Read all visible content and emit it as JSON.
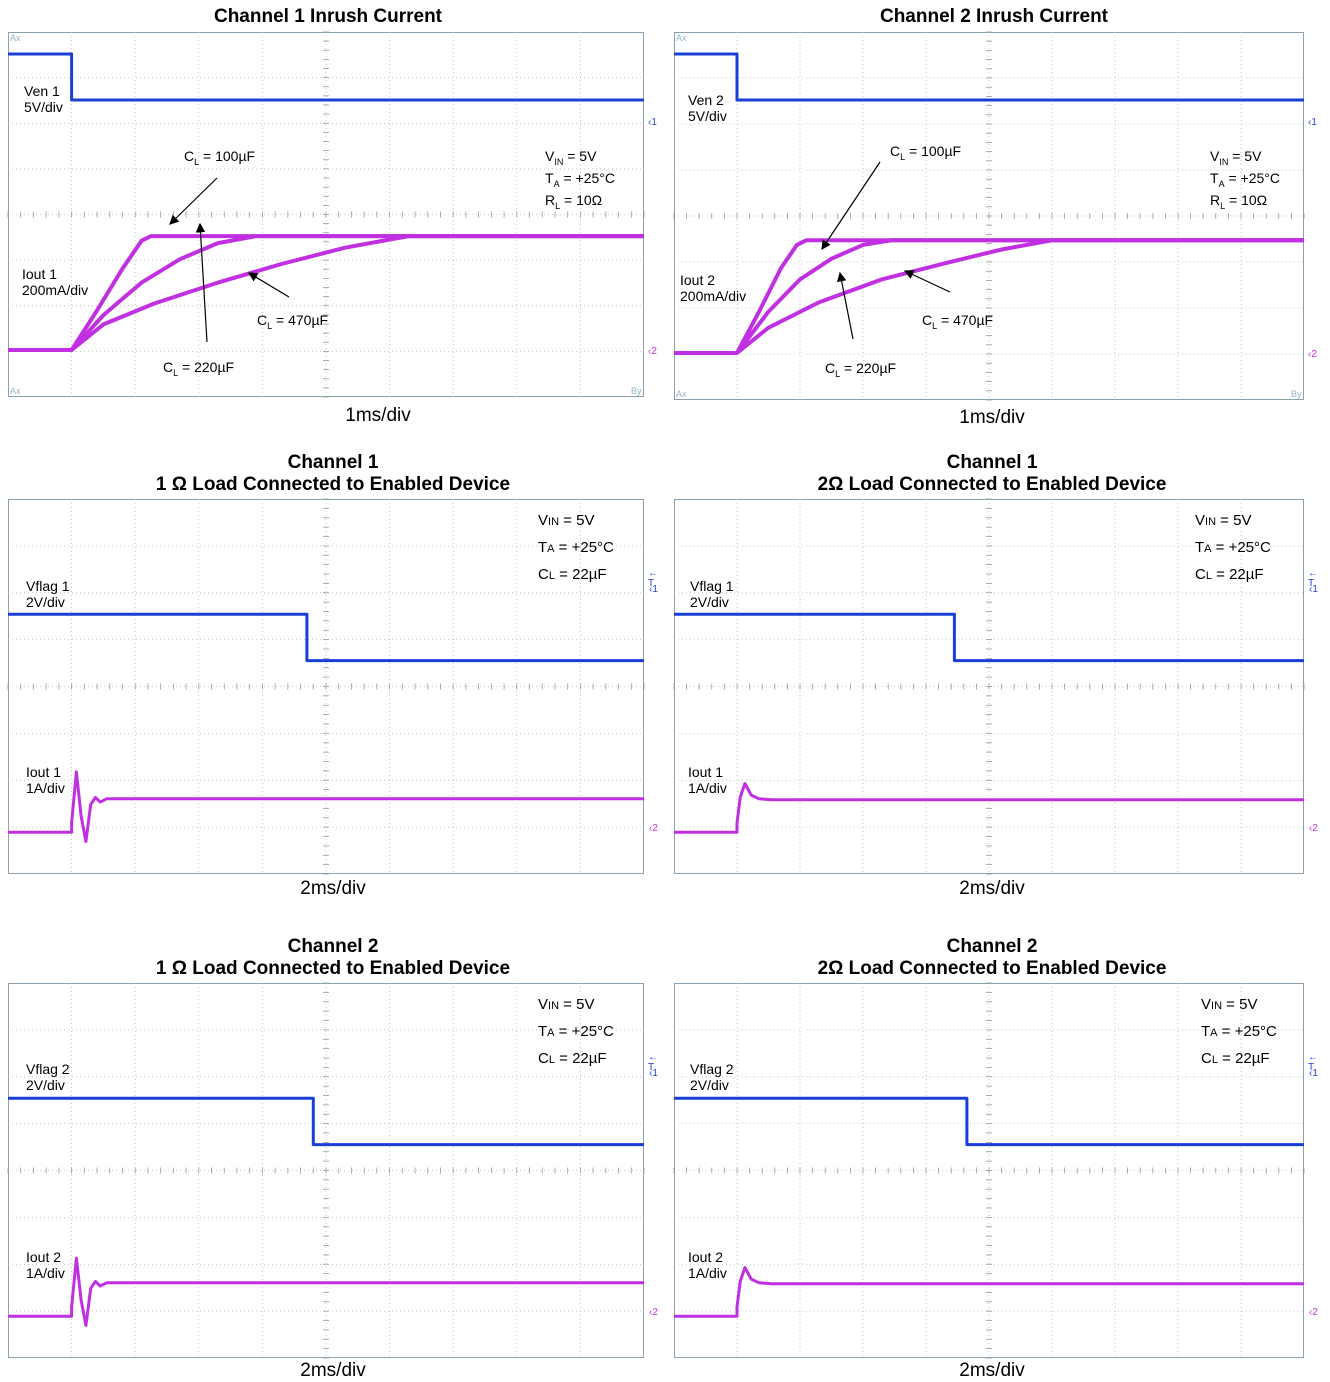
{
  "chart_data": [
    {
      "type": "line",
      "panel_title": [
        "Channel 1 Inrush Current"
      ],
      "xlabel": "1ms/div",
      "x_unit": "ms",
      "xlim": [
        -0.5,
        9.5
      ],
      "grid": true,
      "channel_labels": [
        {
          "name": "Ven 1",
          "scale": "5V/div"
        },
        {
          "name": "Iout 1",
          "scale": "200mA/div"
        }
      ],
      "conditions": [
        "V_IN = 5V",
        "T_A = +25°C",
        "R_L = 10Ω"
      ],
      "corner_labels": [
        "Ax",
        "Ax",
        "By"
      ],
      "ref_markers": [
        "1",
        "2"
      ],
      "callouts": [
        "C_L = 100µF",
        "C_L = 220µF",
        "C_L = 470µF"
      ],
      "series": [
        {
          "name": "Ven 1",
          "color": "#1b3fd6",
          "divs": true,
          "x": [
            -0.5,
            0.5,
            0.5,
            9.5
          ],
          "y": [
            1.5,
            1.5,
            0.5,
            0.5
          ]
        },
        {
          "name": "C_L = 100µF",
          "color": "#c030e0",
          "group": "iout",
          "x": [
            -0.5,
            0.5,
            0.9,
            1.3,
            1.6,
            1.75,
            9.5
          ],
          "y": [
            0,
            0,
            0.85,
            1.75,
            2.35,
            2.45,
            2.45
          ]
        },
        {
          "name": "C_L = 220µF",
          "color": "#c030e0",
          "group": "iout",
          "x": [
            0.5,
            1.0,
            1.6,
            2.2,
            2.8,
            3.4,
            9.5
          ],
          "y": [
            0,
            0.75,
            1.45,
            1.95,
            2.3,
            2.45,
            2.45
          ]
        },
        {
          "name": "C_L = 470µF",
          "color": "#c030e0",
          "group": "iout",
          "x": [
            0.5,
            1.0,
            1.8,
            2.8,
            3.8,
            4.8,
            5.8,
            9.5
          ],
          "y": [
            0,
            0.55,
            1.0,
            1.45,
            1.85,
            2.2,
            2.45,
            2.45
          ]
        }
      ],
      "iout_baseline_div": -1.9,
      "iout_div_per_unit": 1
    },
    {
      "type": "line",
      "panel_title": [
        "Channel 2 Inrush Current"
      ],
      "xlabel": "1ms/div",
      "x_unit": "ms",
      "xlim": [
        -0.5,
        9.5
      ],
      "grid": true,
      "channel_labels": [
        {
          "name": "Ven 2",
          "scale": "5V/div"
        },
        {
          "name": "Iout 2",
          "scale": "200mA/div"
        }
      ],
      "conditions": [
        "V_IN = 5V",
        "T_A = +25°C",
        "R_L = 10Ω"
      ],
      "corner_labels": [
        "Ax",
        "Ax",
        "By"
      ],
      "ref_markers": [
        "1",
        "2"
      ],
      "callouts": [
        "C_L = 100µF",
        "C_L = 220µF",
        "C_L = 470µF"
      ],
      "series": [
        {
          "name": "Ven 2",
          "color": "#1b3fd6",
          "divs": true,
          "x": [
            -0.5,
            0.5,
            0.5,
            9.5
          ],
          "y": [
            1.5,
            1.5,
            0.5,
            0.5
          ]
        },
        {
          "name": "C_L = 100µF",
          "color": "#c030e0",
          "group": "iout",
          "x": [
            -0.5,
            0.5,
            0.85,
            1.2,
            1.45,
            1.6,
            9.5
          ],
          "y": [
            0,
            0,
            0.9,
            1.85,
            2.35,
            2.45,
            2.45
          ]
        },
        {
          "name": "C_L = 220µF",
          "color": "#c030e0",
          "group": "iout",
          "x": [
            0.5,
            1.0,
            1.5,
            2.0,
            2.5,
            2.95,
            9.5
          ],
          "y": [
            0,
            0.9,
            1.6,
            2.05,
            2.35,
            2.45,
            2.45
          ]
        },
        {
          "name": "C_L = 470µF",
          "color": "#c030e0",
          "group": "iout",
          "x": [
            0.5,
            1.0,
            1.8,
            2.8,
            3.8,
            4.7,
            5.5,
            9.5
          ],
          "y": [
            0,
            0.55,
            1.1,
            1.6,
            1.95,
            2.25,
            2.45,
            2.45
          ]
        }
      ]
    },
    {
      "type": "line",
      "panel_title": [
        "Channel 1",
        "1 Ω Load Connected to Enabled Device"
      ],
      "xlabel": "2ms/div",
      "x_unit": "ms",
      "xlim": [
        -1,
        19
      ],
      "grid": true,
      "channel_labels": [
        {
          "name": "Vflag 1",
          "scale": "2V/div"
        },
        {
          "name": "Iout 1",
          "scale": "1A/div"
        }
      ],
      "conditions": [
        "VIN = 5V",
        "TA = +25°C",
        "CL = 22µF"
      ],
      "ref_markers": [
        "1",
        "2"
      ],
      "series": [
        {
          "name": "Vflag 1",
          "color": "#1b3fd6",
          "divs": true,
          "x": [
            -1,
            8.4,
            8.4,
            19
          ],
          "y": [
            5.6,
            5.6,
            4.6,
            4.6
          ]
        },
        {
          "name": "Iout 1",
          "color": "#c030e0",
          "divs": true,
          "x": [
            -1,
            1.0,
            1.0,
            1.15,
            1.3,
            1.45,
            1.6,
            1.75,
            1.9,
            2.1,
            19
          ],
          "y": [
            0.9,
            0.9,
            1.1,
            2.2,
            1.25,
            0.7,
            1.5,
            1.65,
            1.55,
            1.62,
            1.62
          ]
        }
      ]
    },
    {
      "type": "line",
      "panel_title": [
        "Channel 1",
        "2Ω Load Connected to Enabled Device"
      ],
      "xlabel": "2ms/div",
      "x_unit": "ms",
      "xlim": [
        -1,
        19
      ],
      "grid": true,
      "channel_labels": [
        {
          "name": "Vflag 1",
          "scale": "2V/div"
        },
        {
          "name": "Iout 1",
          "scale": "1A/div"
        }
      ],
      "conditions": [
        "VIN = 5V",
        "TA = +25°C",
        "CL = 22µF"
      ],
      "ref_markers": [
        "1",
        "2"
      ],
      "series": [
        {
          "name": "Vflag 1",
          "color": "#1b3fd6",
          "divs": true,
          "x": [
            -1,
            7.9,
            7.9,
            19
          ],
          "y": [
            5.6,
            5.6,
            4.6,
            4.6
          ]
        },
        {
          "name": "Iout 1",
          "color": "#c030e0",
          "divs": true,
          "x": [
            -1,
            1.0,
            1.0,
            1.1,
            1.25,
            1.45,
            1.7,
            2.1,
            2.8,
            19
          ],
          "y": [
            0.9,
            0.9,
            1.1,
            1.65,
            1.95,
            1.7,
            1.62,
            1.6,
            1.6,
            1.6
          ]
        }
      ]
    },
    {
      "type": "line",
      "panel_title": [
        "Channel 2",
        "1 Ω Load Connected to Enabled Device"
      ],
      "xlabel": "2ms/div",
      "x_unit": "ms",
      "xlim": [
        -1,
        19
      ],
      "grid": true,
      "channel_labels": [
        {
          "name": "Vflag 2",
          "scale": "2V/div"
        },
        {
          "name": "Iout 2",
          "scale": "1A/div"
        }
      ],
      "conditions": [
        "VIN = 5V",
        "TA = +25°C",
        "CL = 22µF"
      ],
      "ref_markers": [
        "1",
        "2"
      ],
      "series": [
        {
          "name": "Vflag 2",
          "color": "#1b3fd6",
          "divs": true,
          "x": [
            -1,
            8.6,
            8.6,
            19
          ],
          "y": [
            5.6,
            5.6,
            4.6,
            4.6
          ]
        },
        {
          "name": "Iout 2",
          "color": "#c030e0",
          "divs": true,
          "x": [
            -1,
            1.0,
            1.0,
            1.15,
            1.3,
            1.45,
            1.6,
            1.75,
            1.9,
            2.1,
            19
          ],
          "y": [
            0.9,
            0.9,
            1.1,
            2.15,
            1.25,
            0.7,
            1.5,
            1.65,
            1.55,
            1.62,
            1.62
          ]
        }
      ]
    },
    {
      "type": "line",
      "panel_title": [
        "Channel 2",
        "2Ω Load Connected to Enabled Device"
      ],
      "xlabel": "2ms/div",
      "x_unit": "ms",
      "xlim": [
        -1,
        19
      ],
      "grid": true,
      "channel_labels": [
        {
          "name": "Vflag 2",
          "scale": "2V/div"
        },
        {
          "name": "Iout 2",
          "scale": "1A/div"
        }
      ],
      "conditions": [
        "VIN = 5V",
        "TA = +25°C",
        "CL = 22µF"
      ],
      "ref_markers": [
        "1",
        "2"
      ],
      "series": [
        {
          "name": "Vflag 2",
          "color": "#1b3fd6",
          "divs": true,
          "x": [
            -1,
            8.3,
            8.3,
            19
          ],
          "y": [
            5.6,
            5.6,
            4.6,
            4.6
          ]
        },
        {
          "name": "Iout 2",
          "color": "#c030e0",
          "divs": true,
          "x": [
            -1,
            1.0,
            1.0,
            1.1,
            1.25,
            1.45,
            1.7,
            2.1,
            2.8,
            19
          ],
          "y": [
            0.9,
            0.9,
            1.1,
            1.65,
            1.95,
            1.7,
            1.62,
            1.6,
            1.6,
            1.6
          ]
        }
      ]
    }
  ],
  "colors": {
    "grid": "#b8b8b8",
    "ch1": "#1b3fd6",
    "ch2": "#c030e0",
    "border": "#8aa2b0"
  }
}
